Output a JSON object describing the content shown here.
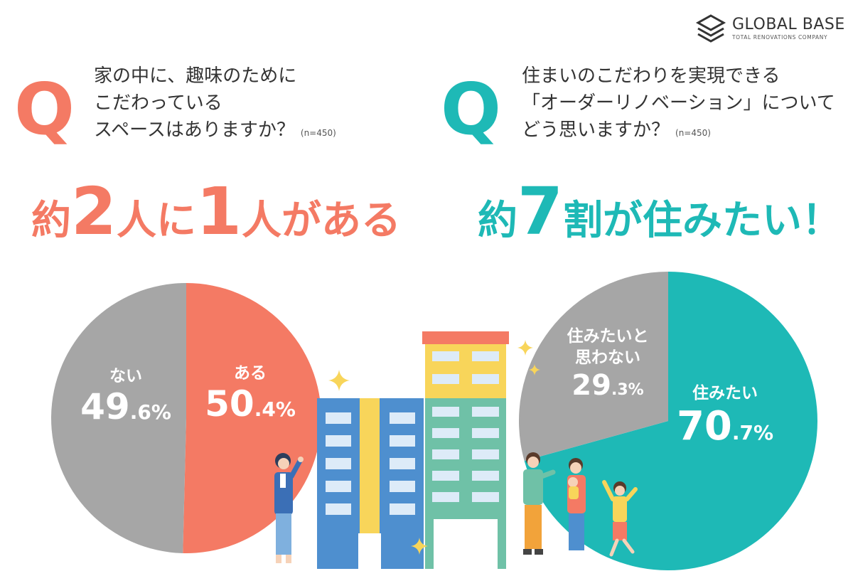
{
  "colors": {
    "coral": "#F47A64",
    "teal": "#1EB9B6",
    "gray": "#A6A6A6",
    "text": "#333333",
    "building_blue": "#4E8FCF",
    "building_yellow": "#F8D55A",
    "building_green": "#6FC1A7",
    "building_roof": "#F47A64"
  },
  "logo": {
    "name": "GLOBAL BASE",
    "tagline": "TOTAL RENOVATIONS COMPANY",
    "icon": "stacked-layers-icon"
  },
  "left": {
    "q_mark": "Q",
    "question_lines": [
      "家の中に、趣味のために",
      "こだわっている",
      "スペースはありますか？"
    ],
    "note": "(n=450)",
    "headline": {
      "prefix": "約",
      "num1": "2",
      "mid1": "人に",
      "num2": "1",
      "suffix": "人がある"
    }
  },
  "right": {
    "q_mark": "Q",
    "question_lines": [
      "住まいのこだわりを実現できる",
      "「オーダーリノベーション」について",
      "どう思いますか？"
    ],
    "note": "(n=450)",
    "headline": {
      "prefix": "約",
      "num": "7",
      "suffix": "割が住みたい！"
    }
  },
  "chart_data": [
    {
      "type": "pie",
      "title": "家の中に、趣味のためにこだわっているスペースはありますか？",
      "note": "(n=450)",
      "slices": [
        {
          "name": "ある",
          "value": 50.4,
          "int": "50",
          "dec": ".4%",
          "color": "#F47A64"
        },
        {
          "name": "ない",
          "value": 49.6,
          "int": "49",
          "dec": ".6%",
          "color": "#A6A6A6"
        }
      ]
    },
    {
      "type": "pie",
      "title": "住まいのこだわりを実現できる「オーダーリノベーション」についてどう思いますか？",
      "note": "(n=450)",
      "slices": [
        {
          "name": "住みたい",
          "value": 70.7,
          "int": "70",
          "dec": ".7%",
          "color": "#1EB9B6"
        },
        {
          "name": "住みたいと\n思わない",
          "name_lines": [
            "住みたいと",
            "思わない"
          ],
          "value": 29.3,
          "int": "29",
          "dec": ".3%",
          "color": "#A6A6A6"
        }
      ]
    }
  ]
}
